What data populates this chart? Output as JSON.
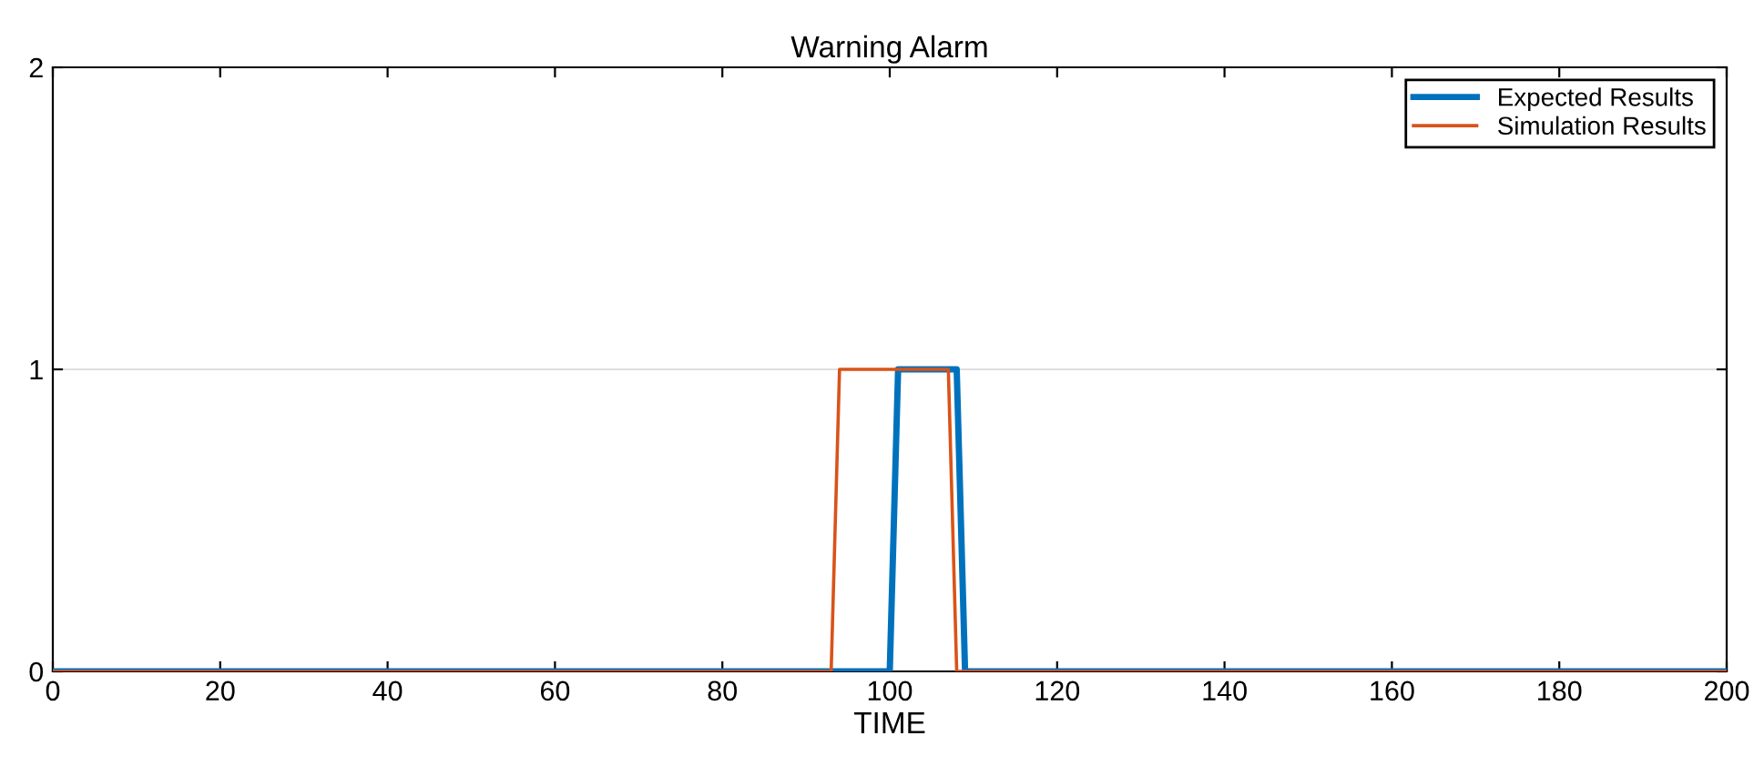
{
  "chart_data": {
    "type": "line",
    "title": "Warning Alarm",
    "xlabel": "TIME",
    "xlim": [
      0,
      200
    ],
    "xticks": [
      0,
      20,
      40,
      60,
      80,
      100,
      120,
      140,
      160,
      180,
      200
    ],
    "ylim": [
      0,
      2
    ],
    "yticks": [
      0,
      1,
      2
    ],
    "grid": "y",
    "legend": "top right",
    "marker": "none",
    "line_style": "solid",
    "series": [
      {
        "name": "Expected Results",
        "color": "#0072bd",
        "x": [
          0,
          100,
          101,
          108,
          109,
          200
        ],
        "values": [
          0,
          0,
          1,
          1,
          0,
          0
        ]
      },
      {
        "name": "Simulation Results",
        "color": "#d95319",
        "x": [
          0,
          93,
          94,
          107,
          108,
          200
        ],
        "values": [
          0,
          0,
          1,
          1,
          0,
          0
        ]
      }
    ]
  }
}
